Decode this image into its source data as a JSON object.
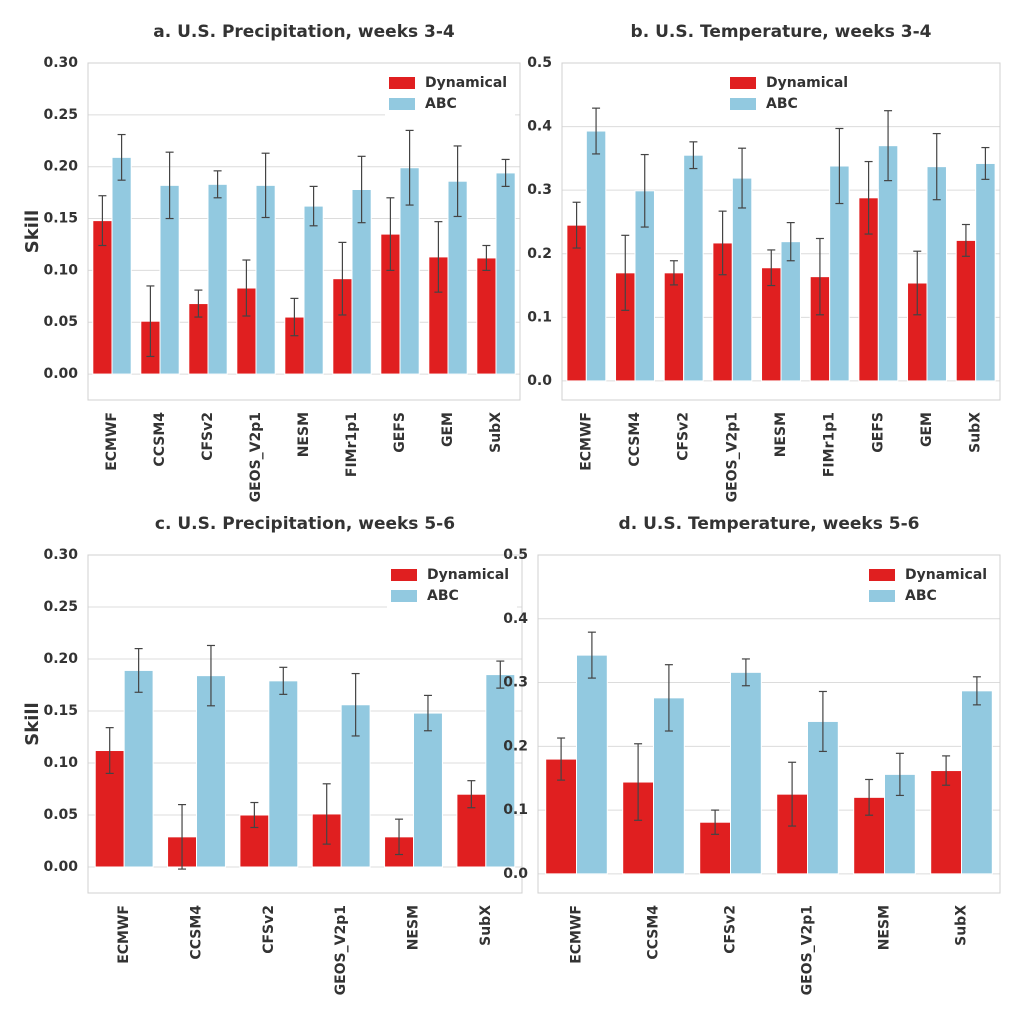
{
  "chart_data": [
    {
      "type": "bar",
      "title": "a. U.S. Precipitation, weeks 3-4",
      "ylabel": "Skill",
      "categories": [
        "ECMWF",
        "CCSM4",
        "CFSv2",
        "GEOS_V2p1",
        "NESM",
        "FIMr1p1",
        "GEFS",
        "GEM",
        "SubX"
      ],
      "series": [
        {
          "name": "Dynamical",
          "color": "#e01f20",
          "values": [
            0.148,
            0.051,
            0.068,
            0.083,
            0.055,
            0.092,
            0.135,
            0.113,
            0.112
          ],
          "errors": [
            0.024,
            0.034,
            0.013,
            0.027,
            0.018,
            0.035,
            0.035,
            0.034,
            0.012
          ]
        },
        {
          "name": "ABC",
          "color": "#92c9e0",
          "values": [
            0.209,
            0.182,
            0.183,
            0.182,
            0.162,
            0.178,
            0.199,
            0.186,
            0.194
          ],
          "errors": [
            0.022,
            0.032,
            0.013,
            0.031,
            0.019,
            0.032,
            0.036,
            0.034,
            0.013
          ]
        }
      ],
      "ylim": [
        -0.025,
        0.3
      ],
      "yticks": [
        {
          "value": 0,
          "label": "0.00"
        },
        0.05,
        {
          "value": 0.1,
          "label": "0.10"
        },
        0.15,
        {
          "value": 0.2,
          "label": "0.20"
        },
        0.25,
        {
          "value": 0.3,
          "label": "0.30"
        }
      ],
      "grid": true,
      "legend": "upper right"
    },
    {
      "type": "bar",
      "title": "b. U.S. Temperature, weeks 3-4",
      "categories": [
        "ECMWF",
        "CCSM4",
        "CFSv2",
        "GEOS_V2p1",
        "NESM",
        "FIMr1p1",
        "GEFS",
        "GEM",
        "SubX"
      ],
      "series": [
        {
          "name": "Dynamical",
          "color": "#e01f20",
          "values": [
            0.245,
            0.17,
            0.17,
            0.217,
            0.178,
            0.164,
            0.288,
            0.154,
            0.221
          ],
          "errors": [
            0.036,
            0.059,
            0.019,
            0.05,
            0.028,
            0.06,
            0.057,
            0.05,
            0.025
          ]
        },
        {
          "name": "ABC",
          "color": "#92c9e0",
          "values": [
            0.393,
            0.299,
            0.355,
            0.319,
            0.219,
            0.338,
            0.37,
            0.337,
            0.342
          ],
          "errors": [
            0.036,
            0.057,
            0.021,
            0.047,
            0.03,
            0.059,
            0.055,
            0.052,
            0.025
          ]
        }
      ],
      "ylim": [
        -0.03,
        0.5
      ],
      "yticks": [
        {
          "value": 0,
          "label": "0.0"
        },
        0.1,
        0.2,
        0.3,
        0.4,
        0.5
      ],
      "grid": true,
      "legend": "upper center"
    },
    {
      "type": "bar",
      "title": "c. U.S. Precipitation, weeks 5-6",
      "ylabel": "Skill",
      "categories": [
        "ECMWF",
        "CCSM4",
        "CFSv2",
        "GEOS_V2p1",
        "NESM",
        "SubX"
      ],
      "series": [
        {
          "name": "Dynamical",
          "color": "#e01f20",
          "values": [
            0.112,
            0.029,
            0.05,
            0.051,
            0.029,
            0.07
          ],
          "errors": [
            0.022,
            0.031,
            0.012,
            0.029,
            0.017,
            0.013
          ]
        },
        {
          "name": "ABC",
          "color": "#92c9e0",
          "values": [
            0.189,
            0.184,
            0.179,
            0.156,
            0.148,
            0.185
          ],
          "errors": [
            0.021,
            0.029,
            0.013,
            0.03,
            0.017,
            0.013
          ]
        }
      ],
      "ylim": [
        -0.025,
        0.3
      ],
      "yticks": [
        {
          "value": 0,
          "label": "0.00"
        },
        0.05,
        {
          "value": 0.1,
          "label": "0.10"
        },
        0.15,
        {
          "value": 0.2,
          "label": "0.20"
        },
        0.25,
        {
          "value": 0.3,
          "label": "0.30"
        }
      ],
      "grid": true,
      "legend": "upper right"
    },
    {
      "type": "bar",
      "title": "d. U.S. Temperature, weeks 5-6",
      "categories": [
        "ECMWF",
        "CCSM4",
        "CFSv2",
        "GEOS_V2p1",
        "NESM",
        "SubX"
      ],
      "series": [
        {
          "name": "Dynamical",
          "color": "#e01f20",
          "values": [
            0.18,
            0.144,
            0.081,
            0.125,
            0.12,
            0.162
          ],
          "errors": [
            0.033,
            0.06,
            0.019,
            0.05,
            0.028,
            0.023
          ]
        },
        {
          "name": "ABC",
          "color": "#92c9e0",
          "values": [
            0.343,
            0.276,
            0.316,
            0.239,
            0.156,
            0.287
          ],
          "errors": [
            0.036,
            0.052,
            0.021,
            0.047,
            0.033,
            0.022
          ]
        }
      ],
      "ylim": [
        -0.03,
        0.5
      ],
      "yticks": [
        {
          "value": 0,
          "label": "0.0"
        },
        0.1,
        0.2,
        0.3,
        0.4,
        0.5
      ],
      "grid": true,
      "legend": "upper right"
    }
  ]
}
